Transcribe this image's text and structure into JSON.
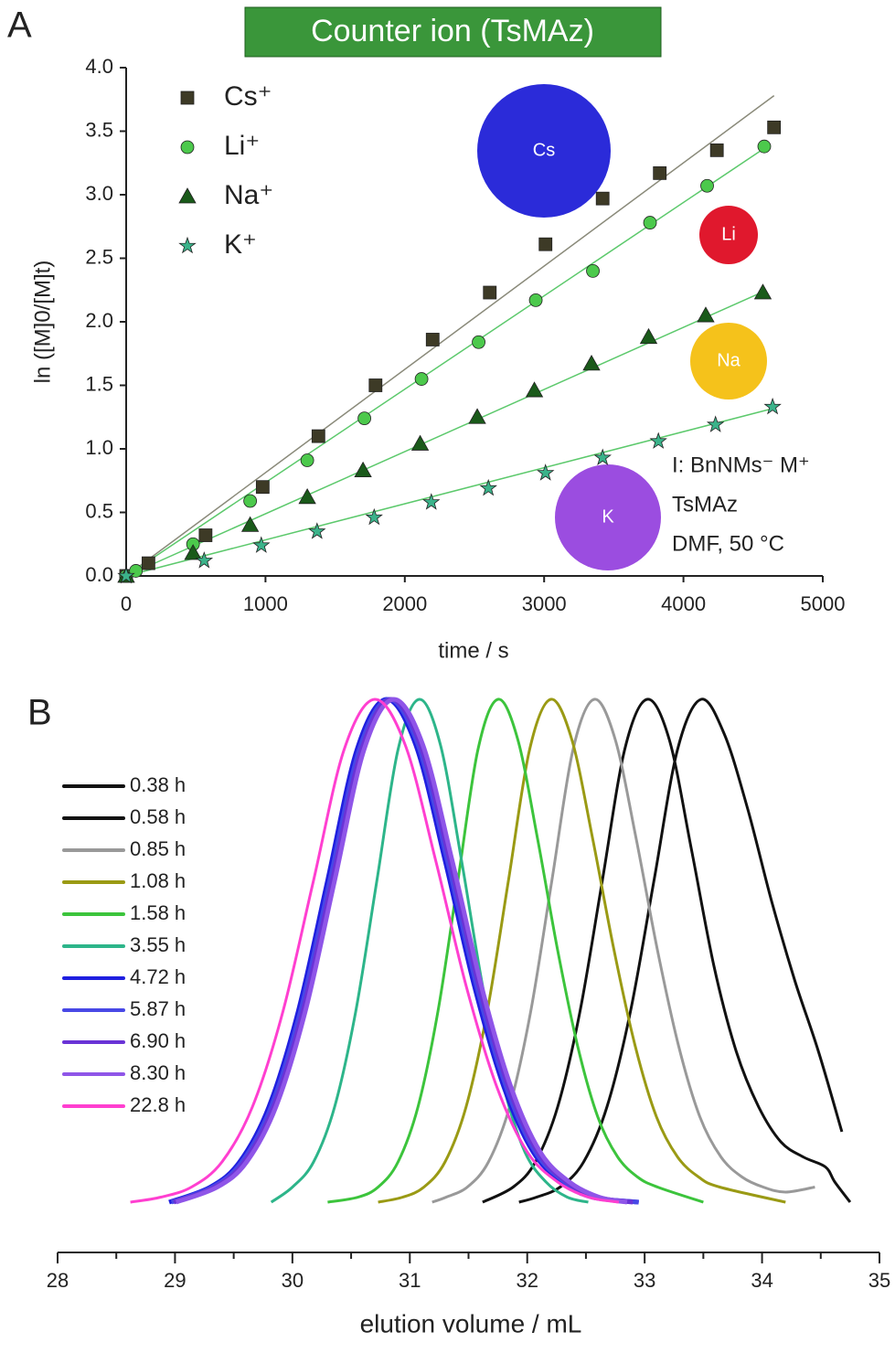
{
  "chart_data": [
    {
      "type": "scatter",
      "panel_label": "A",
      "title": "Counter ion (TsMAz)",
      "xlabel": "time / s",
      "ylabel": "ln ([M]0/[M]t)",
      "xlim": [
        0,
        5000
      ],
      "xticks": [
        0,
        1000,
        2000,
        3000,
        4000,
        5000
      ],
      "ylim": [
        0,
        4
      ],
      "yticks": [
        {
          "value": 0,
          "label": "0.0"
        },
        {
          "value": 0.5,
          "label": "0.5"
        },
        {
          "value": 1,
          "label": "1.0"
        },
        {
          "value": 1.5,
          "label": "1.5"
        },
        {
          "value": 2,
          "label": "2.0"
        },
        {
          "value": 2.5,
          "label": "2.5"
        },
        {
          "value": 3,
          "label": "3.0"
        },
        {
          "value": 3.5,
          "label": "3.5"
        },
        {
          "value": 4,
          "label": "4.0"
        }
      ],
      "legend": "upper left",
      "series": [
        {
          "name": "Cs⁺",
          "marker": "square",
          "color": "#3d3a26",
          "line_color": "#8a8a7a",
          "x": [
            0,
            160,
            570,
            980,
            1380,
            1790,
            2200,
            2610,
            3010,
            3420,
            3830,
            4240,
            4650
          ],
          "values": [
            0,
            0.1,
            0.32,
            0.7,
            1.1,
            1.5,
            1.86,
            2.23,
            2.61,
            2.97,
            3.17,
            3.35,
            3.53
          ],
          "fit_x": [
            0,
            4650
          ],
          "fit_y": [
            0,
            3.78
          ]
        },
        {
          "name": "Li⁺",
          "marker": "circle",
          "color": "#4cc94c",
          "line_color": "#5cc96c",
          "x": [
            0,
            70,
            480,
            890,
            1300,
            1710,
            2120,
            2530,
            2940,
            3350,
            3760,
            4170,
            4580
          ],
          "values": [
            0,
            0.04,
            0.25,
            0.59,
            0.91,
            1.24,
            1.55,
            1.84,
            2.17,
            2.4,
            2.78,
            3.07,
            3.38
          ],
          "fit_x": [
            0,
            4600
          ],
          "fit_y": [
            0,
            3.38
          ]
        },
        {
          "name": "Na⁺",
          "marker": "triangle",
          "color": "#1a5a1a",
          "line_color": "#5cc96c",
          "x": [
            0,
            480,
            890,
            1300,
            1700,
            2110,
            2520,
            2930,
            3340,
            3750,
            4160,
            4570
          ],
          "values": [
            0,
            0.18,
            0.4,
            0.62,
            0.83,
            1.04,
            1.25,
            1.46,
            1.67,
            1.88,
            2.05,
            2.23
          ],
          "fit_x": [
            0,
            4580
          ],
          "fit_y": [
            0,
            2.24
          ]
        },
        {
          "name": "K⁺",
          "marker": "star",
          "color": "#3bb38a",
          "line_color": "#5cc96c",
          "x": [
            0,
            560,
            970,
            1370,
            1780,
            2190,
            2600,
            3010,
            3420,
            3820,
            4230,
            4640
          ],
          "values": [
            0,
            0.12,
            0.24,
            0.35,
            0.46,
            0.58,
            0.69,
            0.81,
            0.93,
            1.06,
            1.19,
            1.33
          ],
          "fit_x": [
            0,
            4650
          ],
          "fit_y": [
            0,
            1.32
          ]
        }
      ],
      "ion_labels": [
        "Cs",
        "Li",
        "Na",
        "K"
      ],
      "conditions": [
        "I: BnNMs⁻ M⁺",
        "TsMAz",
        "DMF, 50 °C"
      ]
    },
    {
      "type": "line",
      "panel_label": "B",
      "xlabel": "elution volume / mL",
      "xlim": [
        28,
        35
      ],
      "xticks": [
        28,
        29,
        30,
        31,
        32,
        33,
        34,
        35
      ],
      "xminor_ticks": [
        28.5,
        29.5,
        30.5,
        31.5,
        32.5,
        33.5,
        34.5
      ],
      "ylim": [
        0,
        1
      ],
      "legend": "upper left",
      "series": [
        {
          "name": "0.38 h",
          "color": "#111111",
          "line_width": 3,
          "x": [
            31.93,
            32.08,
            32.28,
            32.48,
            32.68,
            32.88,
            33.08,
            33.28,
            33.48,
            33.68,
            33.88,
            34.08,
            34.28,
            34.48,
            34.68
          ],
          "values": [
            0,
            0.01,
            0.03,
            0.08,
            0.19,
            0.38,
            0.64,
            0.9,
            1,
            0.93,
            0.78,
            0.6,
            0.44,
            0.3,
            0.14
          ]
        },
        {
          "name": "0.58 h",
          "color": "#111111",
          "line_width": 3,
          "x": [
            31.62,
            31.88,
            32.07,
            32.26,
            32.45,
            32.64,
            32.83,
            33.02,
            33.21,
            33.4,
            33.59,
            33.78,
            33.97,
            34.16,
            34.35,
            34.54,
            34.62,
            34.75
          ],
          "values": [
            0,
            0.03,
            0.08,
            0.19,
            0.38,
            0.64,
            0.9,
            1,
            0.92,
            0.7,
            0.47,
            0.3,
            0.19,
            0.12,
            0.09,
            0.07,
            0.04,
            0
          ]
        },
        {
          "name": "0.85 h",
          "color": "#999999",
          "line_width": 3,
          "x": [
            31.19,
            31.31,
            31.49,
            31.67,
            31.85,
            32.03,
            32.21,
            32.39,
            32.57,
            32.75,
            32.93,
            33.11,
            33.29,
            33.47,
            33.65,
            33.83,
            34.01,
            34.2,
            34.45
          ],
          "values": [
            0,
            0.01,
            0.03,
            0.08,
            0.19,
            0.38,
            0.64,
            0.9,
            1,
            0.92,
            0.72,
            0.5,
            0.31,
            0.17,
            0.09,
            0.05,
            0.03,
            0.02,
            0.03
          ]
        },
        {
          "name": "1.08 h",
          "color": "#9a9a14",
          "line_width": 3,
          "x": [
            30.73,
            30.94,
            31.12,
            31.3,
            31.48,
            31.66,
            31.84,
            32.02,
            32.2,
            32.38,
            32.56,
            32.74,
            32.92,
            33.1,
            33.28,
            33.46,
            33.64,
            34.2
          ],
          "values": [
            0,
            0.01,
            0.03,
            0.08,
            0.19,
            0.38,
            0.64,
            0.9,
            1,
            0.92,
            0.72,
            0.5,
            0.31,
            0.17,
            0.09,
            0.05,
            0.03,
            0
          ]
        },
        {
          "name": "1.58 h",
          "color": "#3cc43c",
          "line_width": 3,
          "x": [
            30.3,
            30.56,
            30.73,
            30.9,
            31.07,
            31.24,
            31.41,
            31.58,
            31.75,
            31.92,
            32.09,
            32.26,
            32.43,
            32.6,
            32.77,
            32.94,
            33.11,
            33.5
          ],
          "values": [
            0,
            0.01,
            0.03,
            0.08,
            0.19,
            0.38,
            0.64,
            0.9,
            1,
            0.92,
            0.72,
            0.5,
            0.31,
            0.17,
            0.09,
            0.05,
            0.03,
            0
          ]
        },
        {
          "name": "3.55 h",
          "color": "#2db58a",
          "line_width": 3,
          "x": [
            29.82,
            30,
            30.18,
            30.36,
            30.54,
            30.72,
            30.9,
            31.08,
            31.26,
            31.44,
            31.62,
            31.8,
            31.98,
            32.16,
            32.34,
            32.52
          ],
          "values": [
            0,
            0.03,
            0.08,
            0.19,
            0.38,
            0.64,
            0.9,
            1,
            0.91,
            0.68,
            0.43,
            0.23,
            0.1,
            0.04,
            0.01,
            0
          ]
        },
        {
          "name": "4.72 h",
          "color": "#1f1fe0",
          "line_width": 5,
          "x": [
            28.95,
            29.3,
            29.55,
            29.8,
            30.05,
            30.3,
            30.55,
            30.8,
            31.05,
            31.3,
            31.55,
            31.8,
            32.05,
            32.3,
            32.55,
            32.95
          ],
          "values": [
            0,
            0.03,
            0.08,
            0.19,
            0.38,
            0.64,
            0.9,
            1,
            0.91,
            0.68,
            0.43,
            0.23,
            0.1,
            0.04,
            0.01,
            0
          ]
        },
        {
          "name": "5.87 h",
          "color": "#4848e6",
          "line_width": 5,
          "x": [
            28.97,
            29.32,
            29.57,
            29.82,
            30.07,
            30.32,
            30.57,
            30.82,
            31.07,
            31.32,
            31.57,
            31.82,
            32.07,
            32.32,
            32.57,
            32.95
          ],
          "values": [
            0,
            0.03,
            0.08,
            0.19,
            0.38,
            0.64,
            0.9,
            1,
            0.91,
            0.68,
            0.43,
            0.23,
            0.1,
            0.04,
            0.01,
            0
          ]
        },
        {
          "name": "6.90 h",
          "color": "#6a33d6",
          "line_width": 5,
          "x": [
            28.99,
            29.34,
            29.59,
            29.84,
            30.09,
            30.34,
            30.59,
            30.84,
            31.09,
            31.34,
            31.59,
            31.84,
            32.09,
            32.34,
            32.59,
            32.9
          ],
          "values": [
            0,
            0.03,
            0.08,
            0.19,
            0.38,
            0.64,
            0.9,
            1,
            0.91,
            0.68,
            0.43,
            0.23,
            0.1,
            0.04,
            0.01,
            0
          ]
        },
        {
          "name": "8.30 h",
          "color": "#8f55e8",
          "line_width": 5,
          "x": [
            29.01,
            29.36,
            29.61,
            29.86,
            30.11,
            30.36,
            30.61,
            30.86,
            31.11,
            31.36,
            31.61,
            31.86,
            32.11,
            32.36,
            32.61,
            32.85
          ],
          "values": [
            0,
            0.03,
            0.08,
            0.19,
            0.38,
            0.64,
            0.9,
            1,
            0.91,
            0.68,
            0.43,
            0.23,
            0.1,
            0.04,
            0.01,
            0
          ]
        },
        {
          "name": "22.8 h",
          "color": "#ff3fd0",
          "line_width": 3,
          "x": [
            28.62,
            28.88,
            29.14,
            29.4,
            29.66,
            29.92,
            30.18,
            30.44,
            30.7,
            30.96,
            31.22,
            31.48,
            31.74,
            32,
            32.26,
            32.52,
            32.78
          ],
          "values": [
            0,
            0.01,
            0.03,
            0.08,
            0.19,
            0.38,
            0.64,
            0.9,
            1,
            0.91,
            0.68,
            0.43,
            0.23,
            0.1,
            0.04,
            0.01,
            0
          ]
        }
      ]
    }
  ]
}
